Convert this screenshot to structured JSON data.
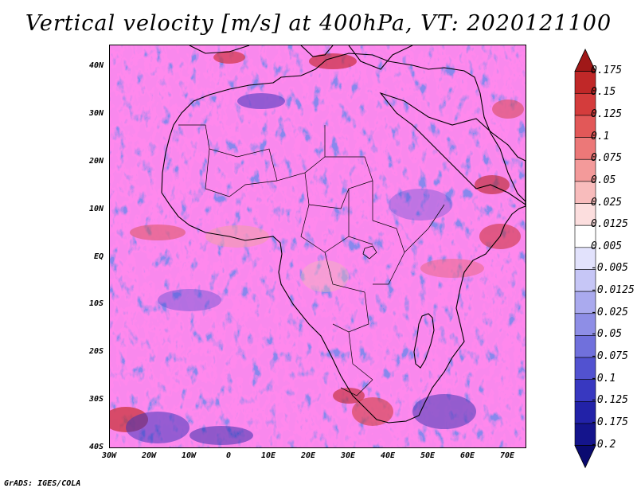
{
  "title": "Vertical velocity [m/s] at 400hPa, VT: 2020121100",
  "footer": "GrADS: IGES/COLA",
  "map": {
    "projection": "latlon",
    "lon_range": [
      -30,
      75
    ],
    "lat_range": [
      -40,
      45
    ],
    "lat_ticks": [
      "40N",
      "30N",
      "20N",
      "10N",
      "EQ",
      "10S",
      "20S",
      "30S",
      "40S"
    ],
    "lon_ticks": [
      "30W",
      "20W",
      "10W",
      "0",
      "10E",
      "20E",
      "30E",
      "40E",
      "50E",
      "60E",
      "70E"
    ],
    "field": "vertical velocity at 400hPa",
    "features": [
      "coastlines",
      "country borders"
    ]
  },
  "colorbar": {
    "labels": [
      "0.175",
      "0.15",
      "0.125",
      "0.1",
      "0.075",
      "0.05",
      "0.025",
      "0.0125",
      "0.005",
      "-0.005",
      "-0.0125",
      "-0.025",
      "-0.05",
      "-0.075",
      "-0.1",
      "-0.125",
      "-0.175",
      "-0.2"
    ],
    "colors": [
      "#a01818",
      "#c02828",
      "#d43c3c",
      "#e25858",
      "#ec7878",
      "#f39a9a",
      "#f8bcbc",
      "#fcdede",
      "#ffffff",
      "#e2e2fc",
      "#c6c6f6",
      "#aaaaee",
      "#8e8ee6",
      "#7070dc",
      "#5252d0",
      "#3838c0",
      "#2222a8",
      "#14148c",
      "#0a0a70"
    ]
  }
}
